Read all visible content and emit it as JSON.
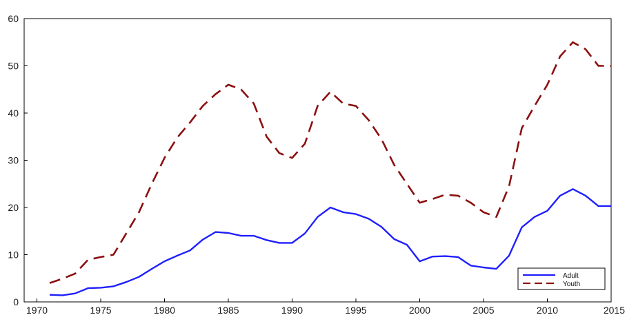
{
  "chart_data": {
    "type": "line",
    "title": "",
    "xlabel": "",
    "ylabel": "",
    "xlim": [
      1969,
      2015
    ],
    "ylim": [
      0,
      60
    ],
    "x_ticks": [
      1970,
      1975,
      1980,
      1985,
      1990,
      1995,
      2000,
      2005,
      2010,
      2015
    ],
    "y_ticks": [
      0,
      10,
      20,
      30,
      40,
      50,
      60
    ],
    "grid": false,
    "legend_position": "bottom-right",
    "x": [
      1971,
      1972,
      1973,
      1974,
      1975,
      1976,
      1977,
      1978,
      1979,
      1980,
      1981,
      1982,
      1983,
      1984,
      1985,
      1986,
      1987,
      1988,
      1989,
      1990,
      1991,
      1992,
      1993,
      1994,
      1995,
      1996,
      1997,
      1998,
      1999,
      2000,
      2001,
      2002,
      2003,
      2004,
      2005,
      2006,
      2007,
      2008,
      2009,
      2010,
      2011,
      2012,
      2013,
      2014,
      2015
    ],
    "series": [
      {
        "name": "Adult",
        "color": "#1f1fff",
        "style": "solid",
        "values": [
          1.5,
          1.4,
          1.8,
          2.9,
          3.0,
          3.3,
          4.2,
          5.3,
          7.0,
          8.6,
          9.8,
          10.9,
          13.2,
          14.8,
          14.6,
          14.0,
          14.0,
          13.1,
          12.5,
          12.5,
          14.5,
          18.0,
          20.0,
          19.0,
          18.6,
          17.6,
          15.9,
          13.3,
          12.1,
          8.6,
          9.6,
          9.7,
          9.5,
          7.7,
          7.3,
          7.0,
          9.8,
          15.8,
          18.0,
          19.3,
          22.5,
          23.9,
          22.5,
          20.3,
          20.3
        ]
      },
      {
        "name": "Youth",
        "color": "#8b0f0f",
        "style": "dashed",
        "values": [
          4.0,
          4.9,
          6.0,
          8.9,
          9.5,
          10.0,
          14.5,
          19.0,
          25.0,
          30.5,
          34.8,
          38.0,
          41.5,
          44.0,
          46.0,
          45.0,
          42.0,
          35.0,
          31.5,
          30.5,
          33.5,
          41.5,
          44.5,
          42.0,
          41.5,
          38.5,
          34.5,
          29.0,
          25.0,
          21.0,
          21.8,
          22.7,
          22.5,
          21.0,
          19.0,
          18.0,
          24.5,
          36.8,
          41.5,
          46.0,
          52.0,
          55.0,
          53.5,
          50.0,
          50.0
        ]
      }
    ]
  }
}
